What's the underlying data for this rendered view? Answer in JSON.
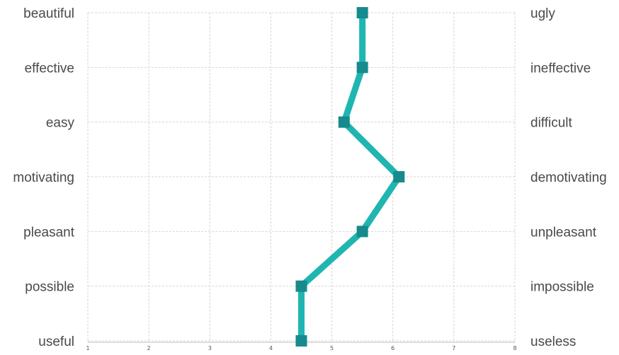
{
  "chart_data": {
    "type": "line",
    "orientation": "vertical-profile",
    "categories": [
      "beautiful/ugly",
      "effective/ineffective",
      "easy/difficult",
      "motivating/demotivating",
      "pleasant/unpleasant",
      "possible/impossible",
      "useful/useless"
    ],
    "left_labels": [
      "beautiful",
      "effective",
      "easy",
      "motivating",
      "pleasant",
      "possible",
      "useful"
    ],
    "right_labels": [
      "ugly",
      "ineffective",
      "difficult",
      "demotivating",
      "unpleasant",
      "impossible",
      "useless"
    ],
    "values": [
      5.5,
      5.5,
      5.2,
      6.1,
      5.5,
      4.5,
      4.5
    ],
    "xlim": [
      1,
      8
    ],
    "xticks": [
      "1",
      "2",
      "3",
      "4",
      "5",
      "6",
      "7",
      "8"
    ],
    "grid": true,
    "series_color": "#1fb5b0",
    "marker_color": "#168a8c"
  }
}
